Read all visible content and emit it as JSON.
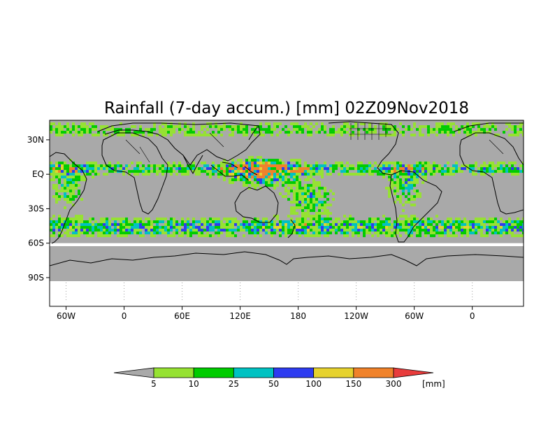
{
  "title": "Rainfall (7-day accum.) [mm] 02Z09Nov2018",
  "y_ticks": [
    {
      "label": "30N",
      "lat": 30
    },
    {
      "label": "EQ",
      "lat": 0
    },
    {
      "label": "30S",
      "lat": -30
    },
    {
      "label": "60S",
      "lat": -60
    },
    {
      "label": "90S",
      "lat": -90
    }
  ],
  "x_ticks": [
    {
      "label": "60W",
      "lon": -60
    },
    {
      "label": "0",
      "lon": 0
    },
    {
      "label": "60E",
      "lon": 60
    },
    {
      "label": "120E",
      "lon": 120
    },
    {
      "label": "180",
      "lon": 180
    },
    {
      "label": "120W",
      "lon": 240
    },
    {
      "label": "60W",
      "lon": 300
    },
    {
      "label": "0",
      "lon": 360
    }
  ],
  "map_extent": {
    "lon_min": -77,
    "lon_max": 413,
    "lat_min": -115,
    "lat_max": 47,
    "data_lat_min": -60,
    "data_lat_max": 50
  },
  "colorbar": {
    "unit": "[mm]",
    "colors": [
      "#a9a9a9",
      "#96e232",
      "#00cc00",
      "#00c2c2",
      "#2e3cf0",
      "#e6d22e",
      "#f0822a",
      "#e83c3c"
    ],
    "labels": [
      "5",
      "10",
      "25",
      "50",
      "100",
      "150",
      "300"
    ]
  },
  "colors": {
    "no_rain": "#a9a9a9",
    "background": "#ffffff",
    "coast": "#000000"
  }
}
